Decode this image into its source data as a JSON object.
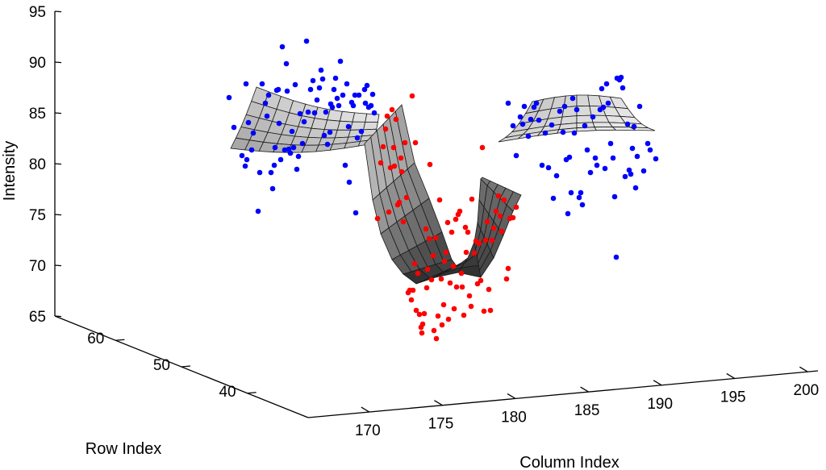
{
  "chart_data": {
    "type": "scatter",
    "subtype": "3d-surface-with-scatter",
    "title": "",
    "xlabel": "Column Index",
    "ylabel": "Row Index",
    "zlabel": "Intensity",
    "x_ticks": [
      170,
      175,
      180,
      185,
      190,
      195,
      200
    ],
    "y_ticks": [
      40,
      50,
      60
    ],
    "z_ticks": [
      65,
      70,
      75,
      80,
      85,
      90,
      95
    ],
    "zlim": [
      65,
      95
    ],
    "grid": false,
    "legend": "none",
    "series": [
      {
        "color": "#0000ff",
        "role": "background points (outer regions)",
        "points": [
          [
            284,
            121
          ],
          [
            290,
            158
          ],
          [
            300,
            193
          ],
          [
            306,
            198
          ],
          [
            304,
            206
          ],
          [
            305,
            104
          ],
          [
            308,
            152
          ],
          [
            312,
            186
          ],
          [
            314,
            165
          ],
          [
            320,
            262
          ],
          [
            322,
            214
          ],
          [
            325,
            104
          ],
          [
            329,
            128
          ],
          [
            331,
            144
          ],
          [
            333,
            118
          ],
          [
            336,
            214
          ],
          [
            338,
            234
          ],
          [
            340,
            205
          ],
          [
            341,
            183
          ],
          [
            343,
            112
          ],
          [
            345,
            111
          ],
          [
            346,
            153
          ],
          [
            348,
            198
          ],
          [
            350,
            58
          ],
          [
            353,
            186
          ],
          [
            355,
            79
          ],
          [
            356,
            113
          ],
          [
            358,
            185
          ],
          [
            360,
            190
          ],
          [
            362,
            163
          ],
          [
            364,
            183
          ],
          [
            366,
            105
          ],
          [
            368,
            210
          ],
          [
            370,
            194
          ],
          [
            372,
            141
          ],
          [
            375,
            178
          ],
          [
            377,
            151
          ],
          [
            380,
            51
          ],
          [
            382,
            139
          ],
          [
            385,
            111
          ],
          [
            388,
            100
          ],
          [
            390,
            140
          ],
          [
            393,
            124
          ],
          [
            396,
            109
          ],
          [
            398,
            87
          ],
          [
            400,
            98
          ],
          [
            402,
            168
          ],
          [
            404,
            139
          ],
          [
            406,
            179
          ],
          [
            409,
            164
          ],
          [
            410,
            129
          ],
          [
            412,
            133
          ],
          [
            414,
            111
          ],
          [
            416,
            97
          ],
          [
            418,
            122
          ],
          [
            420,
            131
          ],
          [
            422,
            76
          ],
          [
            425,
            118
          ],
          [
            428,
            205
          ],
          [
            430,
            104
          ],
          [
            432,
            157
          ],
          [
            433,
            226
          ],
          [
            436,
            127
          ],
          [
            438,
            131
          ],
          [
            440,
            118
          ],
          [
            441,
            264
          ],
          [
            443,
            171
          ],
          [
            445,
            118
          ],
          [
            448,
            163
          ],
          [
            452,
            111
          ],
          [
            453,
            128
          ],
          [
            455,
            106
          ],
          [
            457,
            133
          ],
          [
            460,
            131
          ],
          [
            462,
            117
          ],
          [
            464,
            140
          ],
          [
            630,
            128
          ],
          [
            636,
            156
          ],
          [
            640,
            193
          ],
          [
            645,
            145
          ],
          [
            648,
            154
          ],
          [
            650,
            132
          ],
          [
            655,
            169
          ],
          [
            658,
            148
          ],
          [
            662,
            133
          ],
          [
            665,
            128
          ],
          [
            668,
            149
          ],
          [
            672,
            205
          ],
          [
            676,
            165
          ],
          [
            680,
            208
          ],
          [
            684,
            155
          ],
          [
            686,
            246
          ],
          [
            690,
            218
          ],
          [
            694,
            138
          ],
          [
            698,
            164
          ],
          [
            700,
            132
          ],
          [
            702,
            198
          ],
          [
            704,
            265
          ],
          [
            706,
            195
          ],
          [
            708,
            239
          ],
          [
            710,
            122
          ],
          [
            712,
            165
          ],
          [
            715,
            136
          ],
          [
            718,
            245
          ],
          [
            720,
            239
          ],
          [
            722,
            254
          ],
          [
            725,
            156
          ],
          [
            728,
            186
          ],
          [
            732,
            214
          ],
          [
            735,
            145
          ],
          [
            738,
            196
          ],
          [
            740,
            205
          ],
          [
            744,
            136
          ],
          [
            746,
            110
          ],
          [
            748,
            133
          ],
          [
            750,
            209
          ],
          [
            752,
            104
          ],
          [
            754,
            128
          ],
          [
            757,
            178
          ],
          [
            760,
            196
          ],
          [
            762,
            244
          ],
          [
            764,
            319
          ],
          [
            765,
            97
          ],
          [
            768,
            99
          ],
          [
            770,
            96
          ],
          [
            772,
            109
          ],
          [
            775,
            219
          ],
          [
            778,
            154
          ],
          [
            780,
            211
          ],
          [
            782,
            216
          ],
          [
            784,
            184
          ],
          [
            786,
            157
          ],
          [
            788,
            233
          ],
          [
            790,
            194
          ],
          [
            793,
            132
          ],
          [
            798,
            212
          ],
          [
            803,
            178
          ],
          [
            806,
            186
          ],
          [
            813,
            197
          ]
        ]
      },
      {
        "color": "#ff0000",
        "role": "foreground points (valley region)",
        "points": [
          [
            468,
            271
          ],
          [
            472,
            202
          ],
          [
            475,
            182
          ],
          [
            478,
            160
          ],
          [
            480,
            144
          ],
          [
            482,
            263
          ],
          [
            484,
            208
          ],
          [
            486,
            136
          ],
          [
            488,
            183
          ],
          [
            489,
            206
          ],
          [
            491,
            148
          ],
          [
            493,
            254
          ],
          [
            495,
            251
          ],
          [
            497,
            196
          ],
          [
            498,
            213
          ],
          [
            500,
            275
          ],
          [
            502,
            177
          ],
          [
            504,
            245
          ],
          [
            506,
            363
          ],
          [
            508,
            360
          ],
          [
            510,
            372
          ],
          [
            511,
            119
          ],
          [
            512,
            360
          ],
          [
            514,
            327
          ],
          [
            515,
            177
          ],
          [
            516,
            385
          ],
          [
            518,
            339
          ],
          [
            520,
            390
          ],
          [
            522,
            406
          ],
          [
            523,
            413
          ],
          [
            524,
            402
          ],
          [
            526,
            389
          ],
          [
            528,
            284
          ],
          [
            529,
            357
          ],
          [
            530,
            334
          ],
          [
            532,
            296
          ],
          [
            533,
            204
          ],
          [
            535,
            347
          ],
          [
            537,
            317
          ],
          [
            538,
            410
          ],
          [
            540,
            295
          ],
          [
            541,
            420
          ],
          [
            543,
            392
          ],
          [
            545,
            248
          ],
          [
            547,
            346
          ],
          [
            548,
            403
          ],
          [
            550,
            378
          ],
          [
            551,
            324
          ],
          [
            553,
            313
          ],
          [
            555,
            276
          ],
          [
            556,
            396
          ],
          [
            558,
            351
          ],
          [
            560,
            288
          ],
          [
            562,
            330
          ],
          [
            563,
            383
          ],
          [
            565,
            272
          ],
          [
            566,
            356
          ],
          [
            568,
            266
          ],
          [
            570,
            262
          ],
          [
            572,
            339
          ],
          [
            573,
            356
          ],
          [
            575,
            391
          ],
          [
            577,
            282
          ],
          [
            578,
            313
          ],
          [
            580,
            288
          ],
          [
            582,
            367
          ],
          [
            584,
            380
          ],
          [
            585,
            247
          ],
          [
            588,
            314
          ],
          [
            590,
            299
          ],
          [
            592,
            352
          ],
          [
            594,
            302
          ],
          [
            596,
            348
          ],
          [
            598,
            183
          ],
          [
            600,
            386
          ],
          [
            602,
            298
          ],
          [
            604,
            275
          ],
          [
            606,
            359
          ],
          [
            608,
            385
          ],
          [
            610,
            298
          ],
          [
            612,
            283
          ],
          [
            615,
            262
          ],
          [
            618,
            243
          ],
          [
            620,
            268
          ],
          [
            622,
            287
          ],
          [
            625,
            248
          ],
          [
            628,
            346
          ],
          [
            630,
            333
          ],
          [
            632,
            271
          ],
          [
            636,
            270
          ],
          [
            640,
            257
          ]
        ]
      }
    ]
  }
}
